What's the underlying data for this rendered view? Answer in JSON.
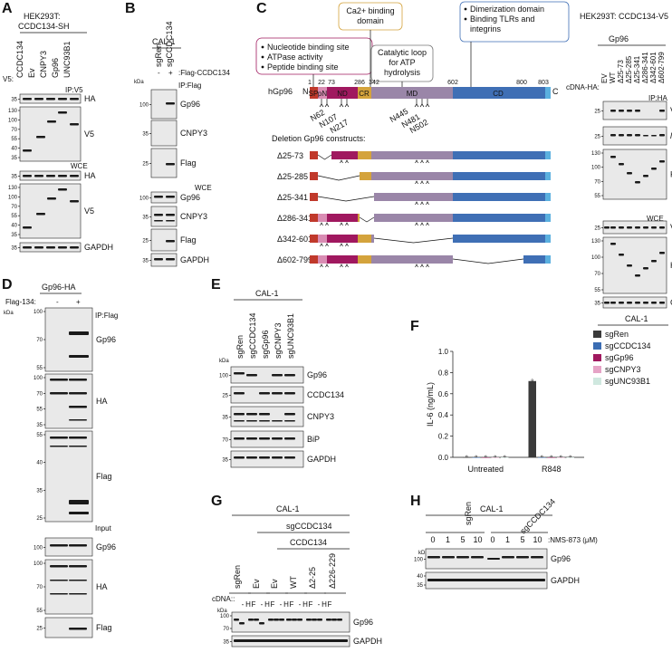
{
  "panels": {
    "A": {
      "letter": "A",
      "header1": "HEK293T:",
      "header2": "CCDC134-SH",
      "lanes_prefix": "V5:",
      "lanes": [
        "CCDC134",
        "Ev",
        "CNPY3",
        "Gp96",
        "UNC93B1"
      ],
      "section1": "IP:V5",
      "section2": "WCE",
      "blots": [
        {
          "ticks": [
            "35"
          ],
          "label": "HA"
        },
        {
          "ticks": [
            "130",
            "100",
            "70",
            "55",
            "40",
            "35"
          ],
          "label": "V5"
        },
        {
          "ticks": [
            "35"
          ],
          "label": "HA"
        },
        {
          "ticks": [
            "130",
            "100",
            "70",
            "55",
            "40",
            "35"
          ],
          "label": "V5"
        },
        {
          "ticks": [
            "35"
          ],
          "label": "GAPDH"
        }
      ]
    },
    "B": {
      "letter": "B",
      "header": "CAL-1",
      "lanes": [
        "sgRen",
        "sgCCDC134"
      ],
      "flag_row_prefix": ":Flag-CCDC134",
      "flag_row": [
        "-",
        "+"
      ],
      "kda": "kDa",
      "section1": "IP:Flag",
      "section2": "WCE",
      "blots": [
        {
          "ticks": [
            "100"
          ],
          "label": "Gp96"
        },
        {
          "ticks": [
            "35"
          ],
          "label": "CNPY3"
        },
        {
          "ticks": [
            "25"
          ],
          "label": "Flag"
        },
        {
          "ticks": [
            "100"
          ],
          "label": "Gp96"
        },
        {
          "ticks": [
            "35"
          ],
          "label": "CNPY3"
        },
        {
          "ticks": [
            "25"
          ],
          "label": "Flag"
        },
        {
          "ticks": [
            "35"
          ],
          "label": "GAPDH"
        }
      ]
    },
    "C": {
      "letter": "C",
      "callout_binding": [
        "Nucleotide binding site",
        "ATPase activity",
        "Peptide binding site"
      ],
      "callout_ca": [
        "Ca2+ binding",
        "domain"
      ],
      "callout_loop": [
        "Catalytic loop",
        "for ATP",
        "hydrolysis"
      ],
      "callout_dimer": [
        "Dimerization domain",
        "Binding TLRs and",
        "integrins"
      ],
      "protein": "hGp96",
      "n_term": "N",
      "c_term": "C",
      "positions": [
        "1",
        "22",
        "73",
        "286",
        "342",
        "602",
        "800",
        "803"
      ],
      "domains": [
        "SP",
        "pN",
        "ND",
        "CR",
        "MD",
        "CD"
      ],
      "sites": [
        "N62",
        "N107",
        "N217",
        "N445",
        "N481",
        "N502"
      ],
      "deletion_title": "Deletion Gp96 constructs:",
      "constructs": [
        "Δ25-73",
        "Δ25-285",
        "Δ25-341",
        "Δ286-341",
        "Δ342-601",
        "Δ602-799"
      ],
      "colors": {
        "SP": "#c0392b",
        "pN": "#d98cb3",
        "ND": "#a0185f",
        "CR": "#d4a33c",
        "MD": "#9a86a8",
        "CD": "#3f6fb5",
        "end": "#5bb0df"
      }
    },
    "C2": {
      "header": "HEK293T: CCDC134-V5",
      "group": "Gp96",
      "cdna_prefix": "cDNA-HA:",
      "lanes": [
        "EV",
        "WT",
        "Δ25-73",
        "Δ25-285",
        "Δ25-341",
        "Δ286-341",
        "Δ342-601",
        "Δ602-799"
      ],
      "section1": "IP:HA",
      "section2": "WCE",
      "blots": [
        {
          "ticks": [
            "25"
          ],
          "label": "V5"
        },
        {
          "ticks": [
            "25"
          ],
          "label": "long exp."
        },
        {
          "ticks": [
            "130",
            "100",
            "70",
            "55"
          ],
          "label": "HA"
        },
        {
          "ticks": [
            "25"
          ],
          "label": "V5"
        },
        {
          "ticks": [
            "130",
            "100",
            "70",
            "55"
          ],
          "label": "HA"
        },
        {
          "ticks": [
            "35"
          ],
          "label": "GAPDH"
        }
      ]
    },
    "D": {
      "letter": "D",
      "header": "Gp96-HA",
      "flag_prefix": "Flag-134:",
      "flag_row": [
        "-",
        "+"
      ],
      "kda": "kDa",
      "section1": "IP:Flag",
      "section2": "Input",
      "blots": [
        {
          "ticks": [
            "100",
            "70",
            "55"
          ],
          "label": "Gp96"
        },
        {
          "ticks": [
            "100",
            "70",
            "55",
            "35"
          ],
          "label": "HA"
        },
        {
          "ticks": [
            "55",
            "40",
            "35",
            "25"
          ],
          "label": "Flag"
        },
        {
          "ticks": [
            "100"
          ],
          "label": "Gp96"
        },
        {
          "ticks": [
            "100",
            "70",
            "55"
          ],
          "label": "HA"
        },
        {
          "ticks": [
            "25"
          ],
          "label": "Flag"
        }
      ]
    },
    "E": {
      "letter": "E",
      "header": "CAL-1",
      "lanes": [
        "sgRen",
        "sgCCDC134",
        "sgGp96",
        "sgCNPY3",
        "sgUNC93B1"
      ],
      "kda": "kDa",
      "blots": [
        {
          "ticks": [
            "100"
          ],
          "label": "Gp96"
        },
        {
          "ticks": [
            "25"
          ],
          "label": "CCDC134"
        },
        {
          "ticks": [
            "35"
          ],
          "label": "CNPY3"
        },
        {
          "ticks": [
            "70"
          ],
          "label": "BiP"
        },
        {
          "ticks": [
            "35"
          ],
          "label": "GAPDH"
        }
      ]
    },
    "F": {
      "letter": "F",
      "legend_title": "CAL-1",
      "legend": [
        "sgRen",
        "sgCCDC134",
        "sgGp96",
        "sgCNPY3",
        "sgUNC93B1"
      ]
    },
    "G": {
      "letter": "G",
      "header": "CAL-1",
      "sub1": "sgCCDC134",
      "sub2": "CCDC134",
      "groups": [
        "sgRen",
        "Ev",
        "Ev",
        "WT",
        "Δ2-25",
        "Δ226-229"
      ],
      "cdna_prefix": "cDNA::",
      "hf": [
        "-",
        "H",
        "F"
      ],
      "kda": "kDa",
      "blots": [
        {
          "ticks": [
            "100",
            "70"
          ],
          "label": "Gp96"
        },
        {
          "ticks": [
            "35"
          ],
          "label": "GAPDH"
        }
      ]
    },
    "H": {
      "letter": "H",
      "header": "CAL-1",
      "groups": [
        "sgRen",
        "sgCCDC134"
      ],
      "dose_suffix": ":NMS-873 (μM)",
      "doses": [
        "0",
        "1",
        "5",
        "10",
        "0",
        "1",
        "5",
        "10"
      ],
      "kda": "kDa",
      "blots": [
        {
          "ticks": [
            "100"
          ],
          "label": "Gp96"
        },
        {
          "ticks": [
            "40",
            "35"
          ],
          "label": "GAPDH"
        }
      ]
    }
  },
  "chart_data": {
    "type": "bar",
    "title": "",
    "ylabel": "IL-6 (ng/mL)",
    "xlabel": "",
    "categories": [
      "Untreated",
      "R848"
    ],
    "ylim": [
      0,
      1.0
    ],
    "yticks": [
      0,
      0.2,
      0.4,
      0.6,
      0.8,
      1.0
    ],
    "series": [
      {
        "name": "sgRen",
        "color": "#3a3a3a",
        "values": [
          0.0,
          0.72
        ]
      },
      {
        "name": "sgCCDC134",
        "color": "#3b6db3",
        "values": [
          0.0,
          0.0
        ]
      },
      {
        "name": "sgGp96",
        "color": "#a0185f",
        "values": [
          0.0,
          0.0
        ]
      },
      {
        "name": "sgCNPY3",
        "color": "#e6a3c6",
        "values": [
          0.0,
          0.0
        ]
      },
      {
        "name": "sgUNC93B1",
        "color": "#cfe8df",
        "values": [
          0.0,
          0.0
        ]
      }
    ]
  }
}
